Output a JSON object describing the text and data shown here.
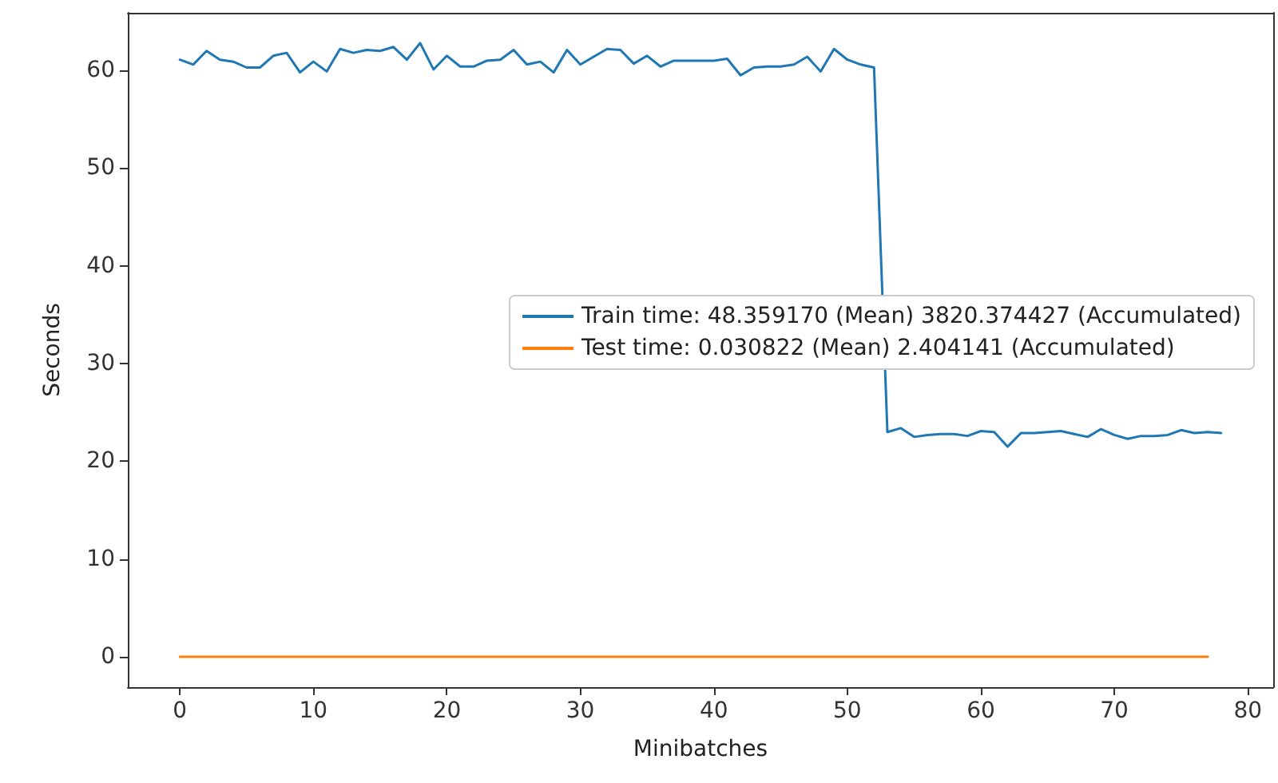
{
  "chart_data": {
    "type": "line",
    "xlabel": "Minibatches",
    "ylabel": "Seconds",
    "x": [
      0,
      1,
      2,
      3,
      4,
      5,
      6,
      7,
      8,
      9,
      10,
      11,
      12,
      13,
      14,
      15,
      16,
      17,
      18,
      19,
      20,
      21,
      22,
      23,
      24,
      25,
      26,
      27,
      28,
      29,
      30,
      31,
      32,
      33,
      34,
      35,
      36,
      37,
      38,
      39,
      40,
      41,
      42,
      43,
      44,
      45,
      46,
      47,
      48,
      49,
      50,
      51,
      52,
      53,
      54,
      55,
      56,
      57,
      58,
      59,
      60,
      61,
      62,
      63,
      64,
      65,
      66,
      67,
      68,
      69,
      70,
      71,
      72,
      73,
      74,
      75,
      76,
      77,
      78
    ],
    "series": [
      {
        "name": "Train time: 48.359170 (Mean) 3820.374427 (Accumulated)",
        "color": "#1f77b4",
        "values": [
          61.1,
          60.6,
          62.0,
          61.1,
          60.9,
          60.3,
          60.3,
          61.5,
          61.8,
          59.8,
          60.9,
          59.9,
          62.2,
          61.8,
          62.1,
          62.0,
          62.4,
          61.1,
          62.8,
          60.1,
          61.5,
          60.4,
          60.4,
          61.0,
          61.1,
          62.1,
          60.6,
          60.9,
          59.8,
          62.1,
          60.6,
          61.4,
          62.2,
          62.1,
          60.7,
          61.5,
          60.4,
          61.0,
          61.0,
          61.0,
          61.0,
          61.2,
          59.5,
          60.3,
          60.4,
          60.4,
          60.6,
          61.4,
          59.9,
          62.2,
          61.1,
          60.6,
          60.3,
          23.0,
          23.4,
          22.5,
          22.7,
          22.8,
          22.8,
          22.6,
          23.1,
          23.0,
          21.5,
          22.9,
          22.9,
          23.0,
          23.1,
          22.8,
          22.5,
          23.3,
          22.7,
          22.3,
          22.6,
          22.6,
          22.7,
          23.2,
          22.9,
          23.0,
          22.9
        ]
      },
      {
        "name": "Test time: 0.030822 (Mean) 2.404141 (Accumulated)",
        "color": "#ff7f0e",
        "values": [
          0,
          0,
          0,
          0,
          0,
          0,
          0,
          0,
          0,
          0,
          0,
          0,
          0,
          0,
          0,
          0,
          0,
          0,
          0,
          0,
          0,
          0,
          0,
          0,
          0,
          0,
          0,
          0,
          0,
          0,
          0,
          0,
          0,
          0,
          0,
          0,
          0,
          0,
          0,
          0,
          0,
          0,
          0,
          0,
          0,
          0,
          0,
          0,
          0,
          0,
          0,
          0,
          0,
          0,
          0,
          0,
          0,
          0,
          0,
          0,
          0,
          0,
          0,
          0,
          0,
          0,
          0,
          0,
          0,
          0,
          0,
          0,
          0,
          0,
          0,
          0,
          0,
          0,
          null
        ]
      }
    ],
    "xlim": [
      -3.9,
      81.9
    ],
    "xticks": [
      0,
      10,
      20,
      30,
      40,
      50,
      60,
      70,
      80
    ],
    "ylim": [
      -3.1,
      65.9
    ],
    "yticks": [
      0,
      10,
      20,
      30,
      40,
      50,
      60
    ],
    "grid": false,
    "legend": "center right",
    "marker": "none",
    "line_style": "solid"
  }
}
